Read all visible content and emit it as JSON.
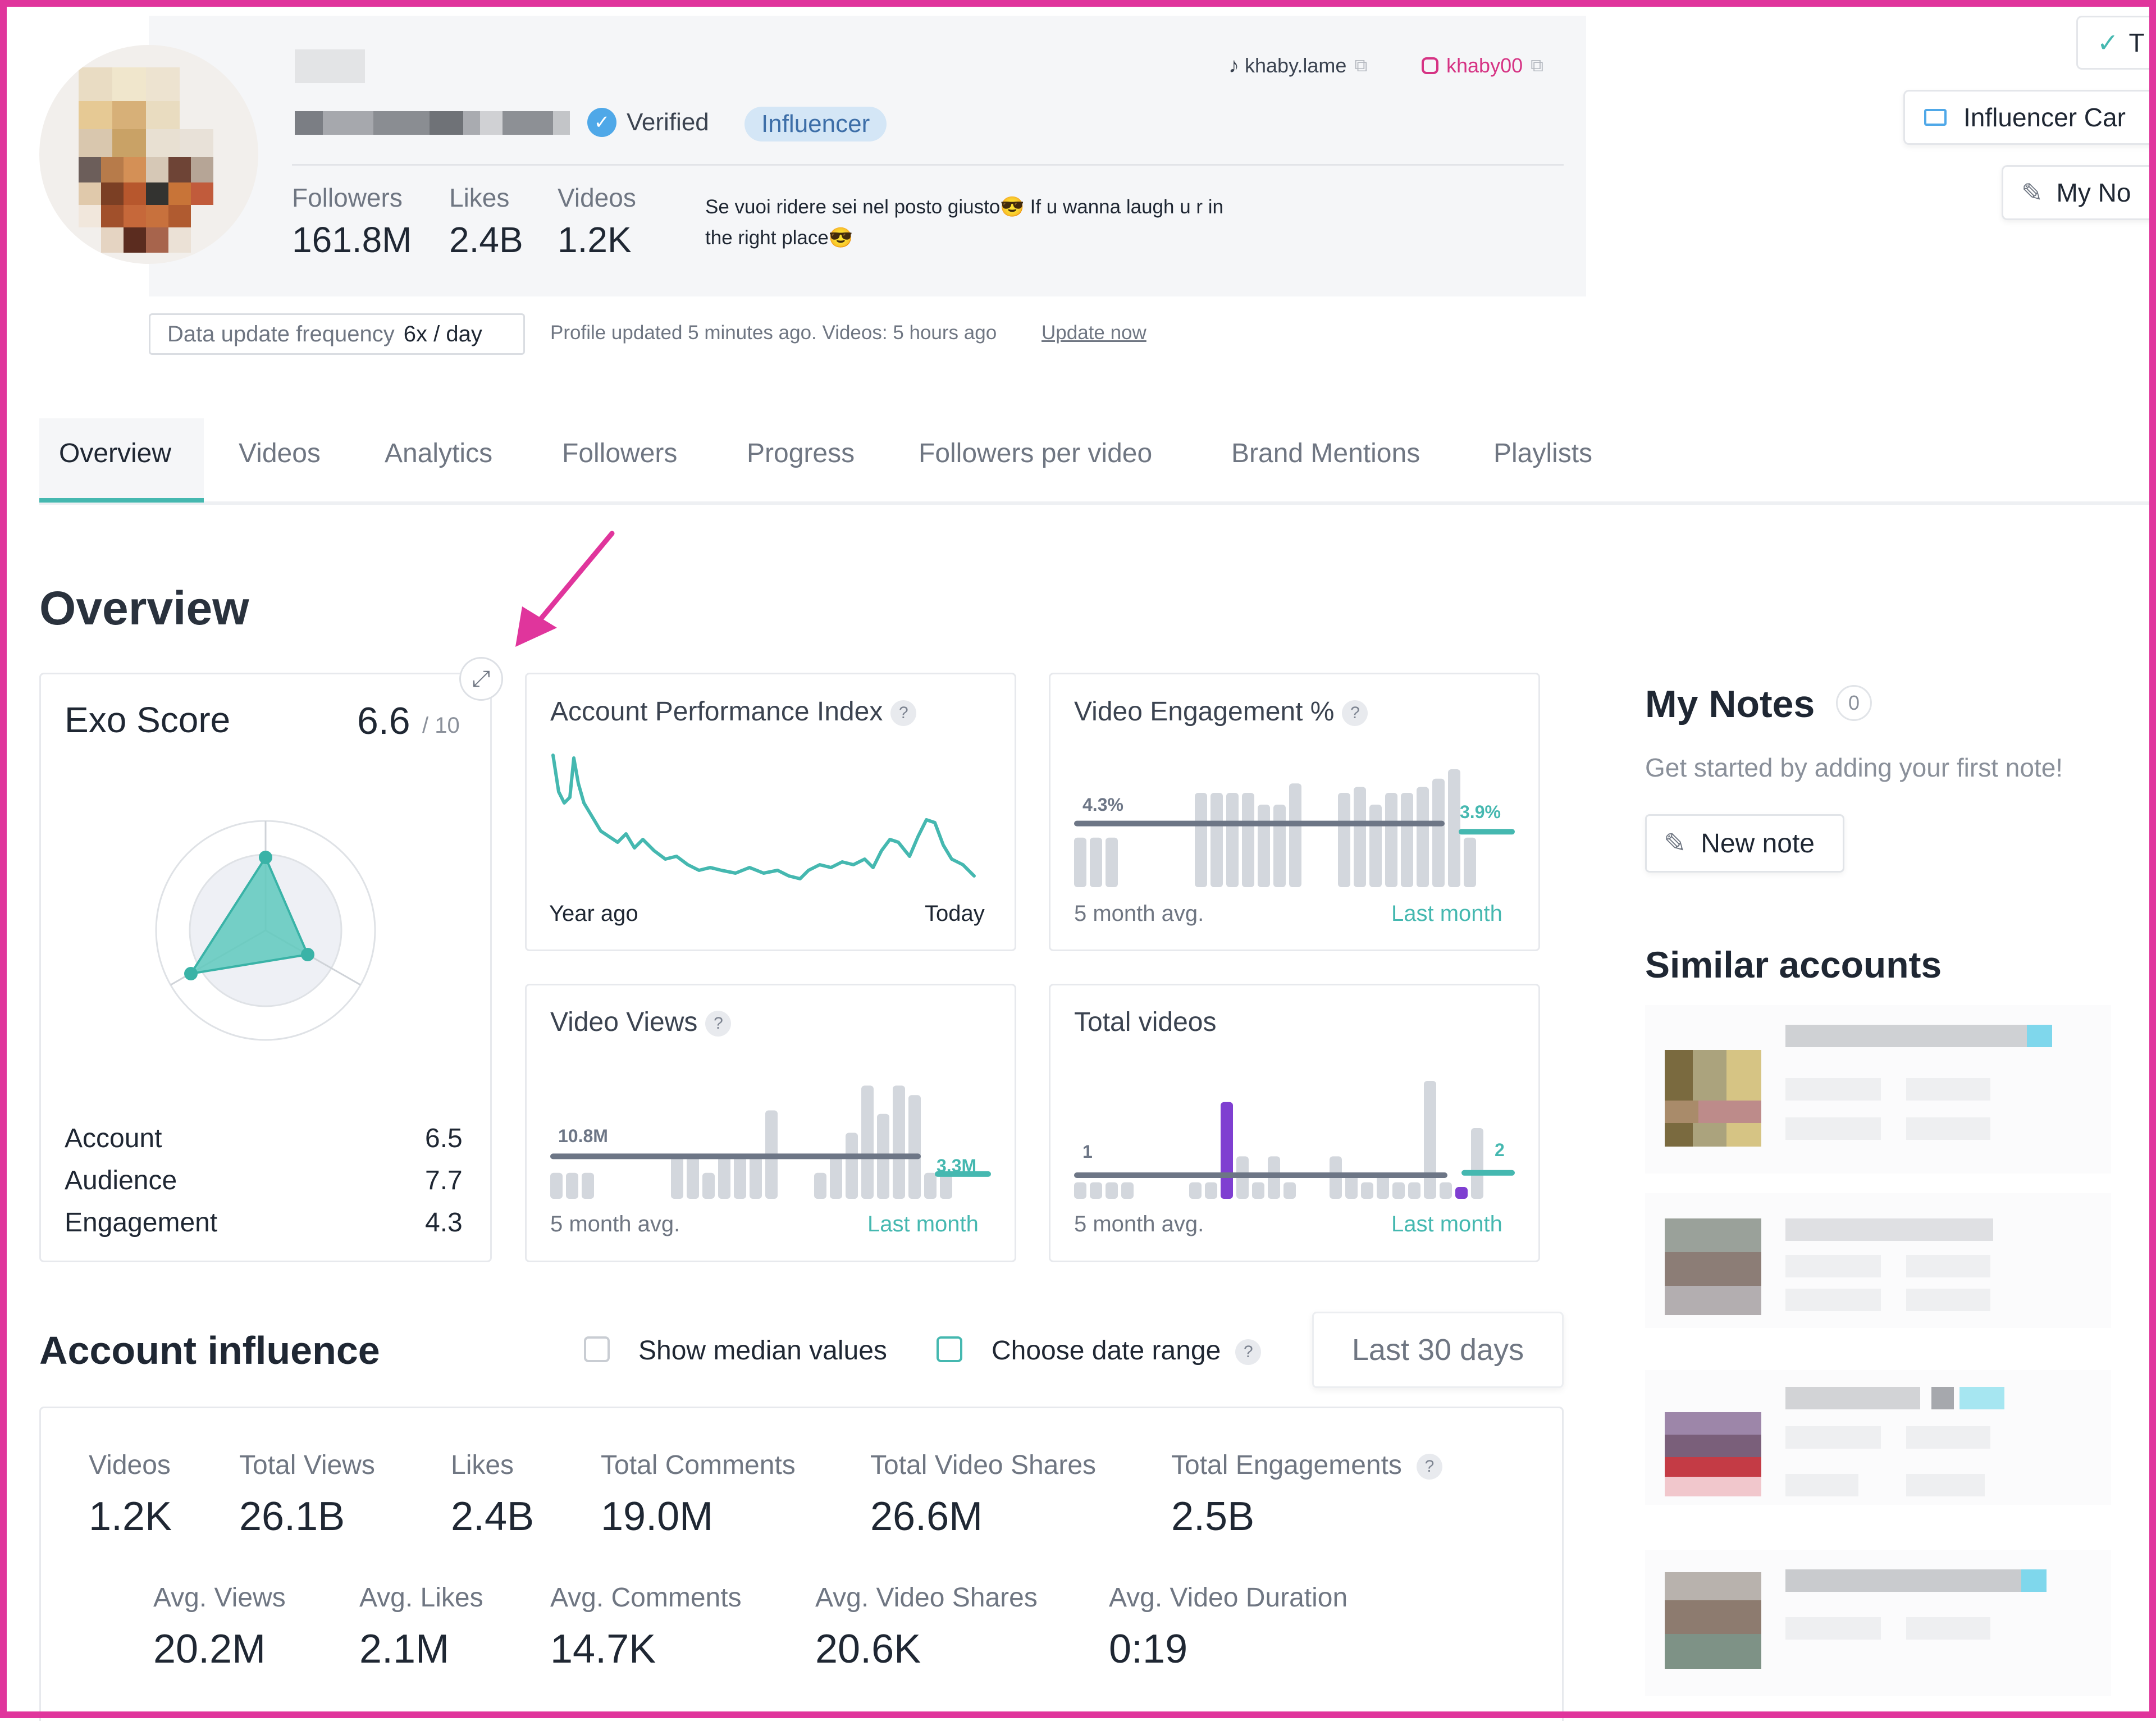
{
  "profile": {
    "tiktok_handle": "khaby.lame",
    "instagram_handle": "khaby00",
    "verified_label": "Verified",
    "influencer_label": "Influencer",
    "stats": [
      {
        "label": "Followers",
        "value": "161.8M"
      },
      {
        "label": "Likes",
        "value": "2.4B"
      },
      {
        "label": "Videos",
        "value": "1.2K"
      }
    ],
    "bio_line1": "Se vuoi ridere sei nel posto giusto😎 If u wanna laugh u r in",
    "bio_line2": "the right place😎",
    "update_freq_label": "Data update frequency",
    "update_freq_value": "6x / day",
    "profile_updated_text": "Profile updated 5 minutes ago. Videos: 5 hours ago",
    "update_now_label": "Update now"
  },
  "top_right": {
    "influencer_card_label": "Influencer Car",
    "my_notes_label": "My No",
    "partial_label": "T"
  },
  "tabs": [
    "Overview",
    "Videos",
    "Analytics",
    "Followers",
    "Progress",
    "Followers per video",
    "Brand Mentions",
    "Playlists"
  ],
  "overview": {
    "title": "Overview",
    "exo": {
      "title": "Exo Score",
      "score": "6.6",
      "max": "/ 10",
      "metrics": [
        {
          "label": "Account",
          "value": "6.5"
        },
        {
          "label": "Audience",
          "value": "7.7"
        },
        {
          "label": "Engagement",
          "value": "4.3"
        }
      ]
    },
    "api": {
      "title": "Account Performance Index",
      "left": "Year ago",
      "right": "Today",
      "help": "?"
    },
    "engagement": {
      "title": "Video Engagement %",
      "avg": "4.3%",
      "last": "3.9%",
      "left": "5 month avg.",
      "right": "Last month",
      "help": "?"
    },
    "views": {
      "title": "Video Views",
      "avg": "10.8M",
      "last": "3.3M",
      "left": "5 month avg.",
      "right": "Last month",
      "help": "?"
    },
    "total_videos": {
      "title": "Total videos",
      "avg": "1",
      "last": "2",
      "left": "5 month avg.",
      "right": "Last month"
    }
  },
  "notes": {
    "title": "My Notes",
    "count": "0",
    "empty_text": "Get started by adding your first note!",
    "new_note_label": "New note"
  },
  "similar": {
    "title": "Similar accounts"
  },
  "influence": {
    "title": "Account influence",
    "show_median_label": "Show median values",
    "choose_range_label": "Choose date range",
    "range_value": "Last 30 days",
    "help": "?",
    "row1": [
      {
        "label": "Videos",
        "value": "1.2K"
      },
      {
        "label": "Total Views",
        "value": "26.1B"
      },
      {
        "label": "Likes",
        "value": "2.4B"
      },
      {
        "label": "Total Comments",
        "value": "19.0M"
      },
      {
        "label": "Total Video Shares",
        "value": "26.6M"
      },
      {
        "label": "Total Engagements",
        "value": "2.5B"
      }
    ],
    "row2": [
      {
        "label": "Avg. Views",
        "value": "20.2M"
      },
      {
        "label": "Avg. Likes",
        "value": "2.1M"
      },
      {
        "label": "Avg. Comments",
        "value": "14.7K"
      },
      {
        "label": "Avg. Video Shares",
        "value": "20.6K"
      },
      {
        "label": "Avg. Video Duration",
        "value": "0:19"
      }
    ]
  },
  "colors": {
    "accent": "#45b8b0",
    "highlight": "#e0359c",
    "purple": "#7f3fd1",
    "bar": "#d3d7dd",
    "avg_line": "#6d7686"
  }
}
